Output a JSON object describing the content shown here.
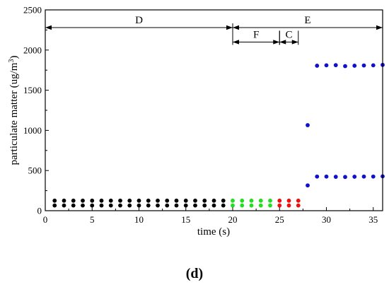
{
  "chart_data": {
    "type": "scatter",
    "xlabel": "time (s)",
    "ylabel_prefix": "particulate matter (ug/m",
    "ylabel_sup": "3",
    "ylabel_suffix": ")",
    "xlim": [
      0,
      36
    ],
    "ylim": [
      0,
      2500
    ],
    "xticks": [
      0,
      5,
      10,
      15,
      20,
      25,
      30,
      35
    ],
    "yticks": [
      0,
      500,
      1000,
      1500,
      2000,
      2500
    ],
    "grid": false,
    "panel_label": "(d)",
    "colors": {
      "black": "#000000",
      "green": "#22dd22",
      "red": "#ee1111",
      "blue": "#1111cc"
    },
    "series": [
      {
        "color": "black",
        "x": [
          1,
          2,
          3,
          4,
          5,
          6,
          7,
          8,
          9,
          10,
          11,
          12,
          13,
          14,
          15,
          16,
          17,
          18,
          19
        ],
        "y": [
          125,
          125,
          125,
          125,
          125,
          125,
          125,
          125,
          125,
          125,
          125,
          125,
          125,
          125,
          125,
          125,
          125,
          125,
          125
        ]
      },
      {
        "color": "black",
        "x": [
          1,
          2,
          3,
          4,
          5,
          6,
          7,
          8,
          9,
          10,
          11,
          12,
          13,
          14,
          15,
          16,
          17,
          18,
          19
        ],
        "y": [
          65,
          65,
          65,
          65,
          65,
          65,
          65,
          65,
          65,
          65,
          65,
          65,
          65,
          65,
          65,
          65,
          65,
          65,
          65
        ]
      },
      {
        "color": "green",
        "x": [
          20,
          21,
          22,
          23,
          24
        ],
        "y": [
          125,
          125,
          125,
          125,
          125
        ]
      },
      {
        "color": "green",
        "x": [
          20,
          21,
          22,
          23,
          24
        ],
        "y": [
          65,
          65,
          65,
          65,
          65
        ]
      },
      {
        "color": "red",
        "x": [
          25,
          26,
          27
        ],
        "y": [
          125,
          125,
          125
        ]
      },
      {
        "color": "red",
        "x": [
          25,
          26,
          27
        ],
        "y": [
          65,
          65,
          65
        ]
      },
      {
        "color": "blue",
        "x": [
          28,
          29,
          30,
          31,
          32,
          33,
          34,
          35,
          36
        ],
        "y": [
          1065,
          1805,
          1810,
          1812,
          1800,
          1805,
          1808,
          1810,
          1815
        ]
      },
      {
        "color": "blue",
        "x": [
          28,
          29,
          30,
          31,
          32,
          33,
          34,
          35,
          36
        ],
        "y": [
          315,
          425,
          425,
          422,
          420,
          423,
          425,
          425,
          428
        ]
      }
    ],
    "annotations": [
      {
        "label": "D",
        "x_start": 0,
        "x_end": 20,
        "y": 2280
      },
      {
        "label": "E",
        "x_start": 20,
        "x_end": 36,
        "y": 2280
      },
      {
        "label": "F",
        "x_start": 20,
        "x_end": 25,
        "y": 2100
      },
      {
        "label": "C",
        "x_start": 25,
        "x_end": 27,
        "y": 2100
      }
    ]
  }
}
